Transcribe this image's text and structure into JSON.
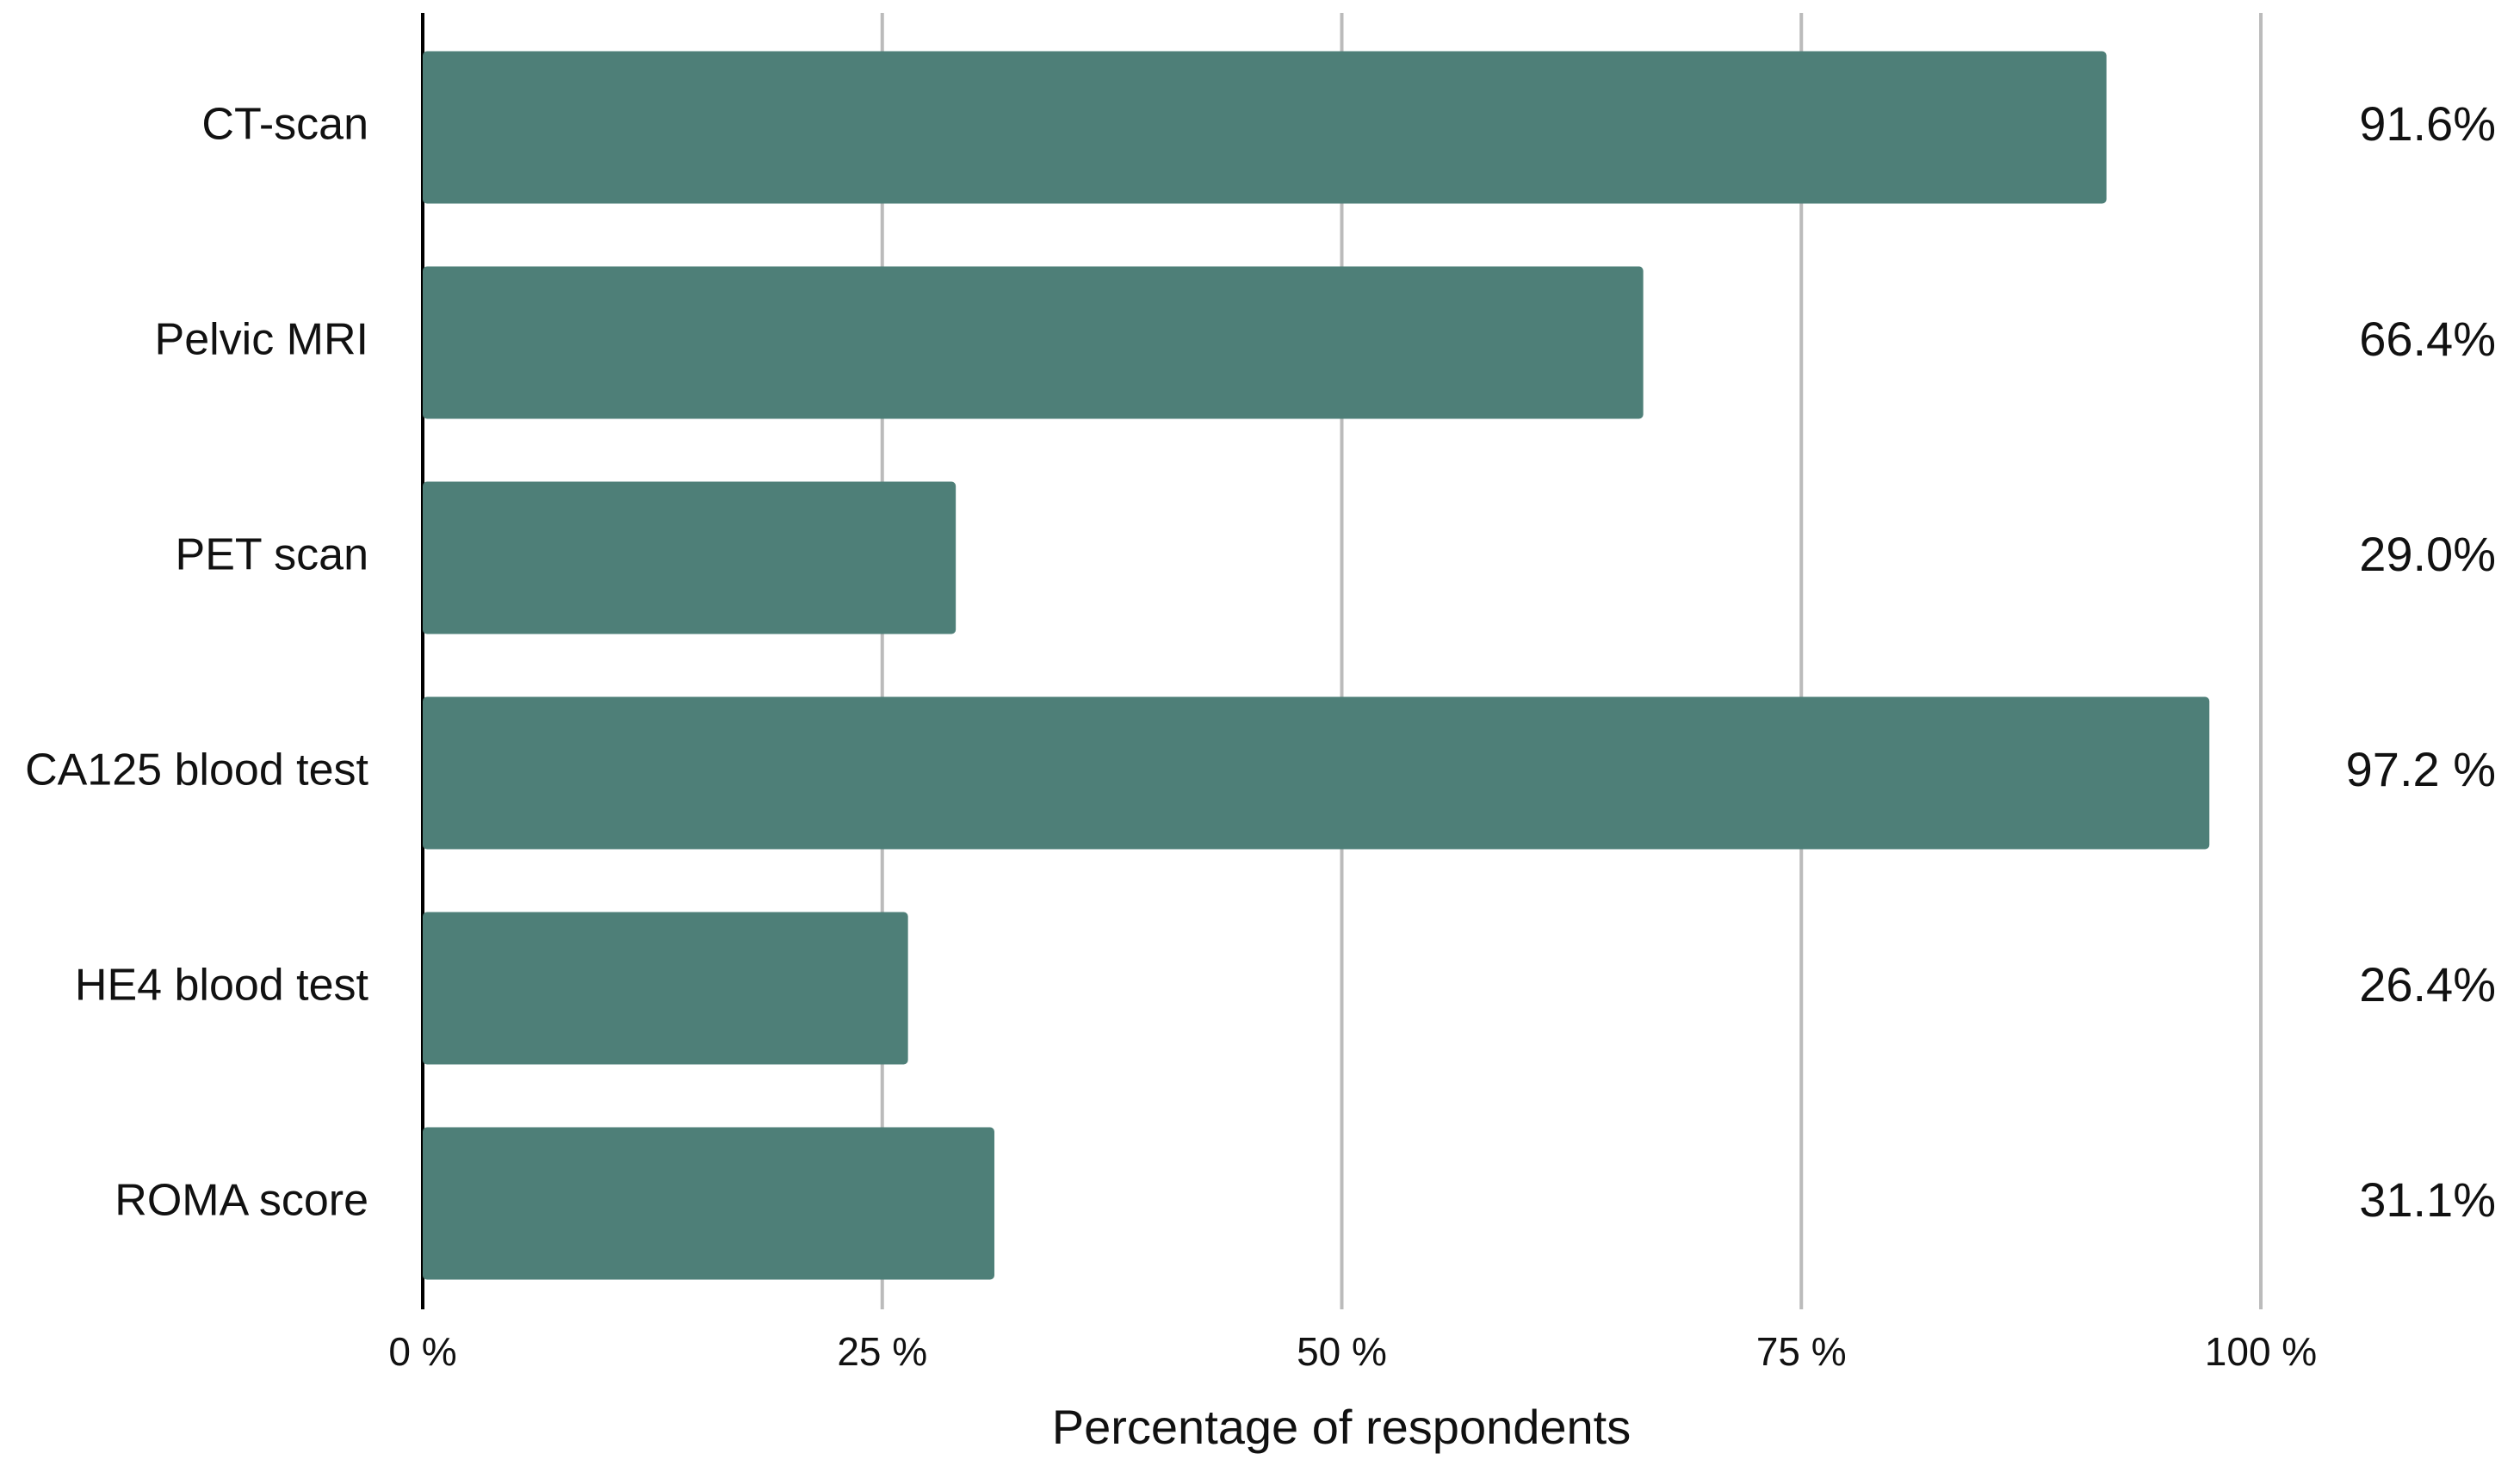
{
  "chart_data": {
    "type": "bar",
    "orientation": "horizontal",
    "xlabel": "Percentage of respondents",
    "categories": [
      "CT-scan",
      "Pelvic MRI",
      "PET scan",
      "CA125 blood test",
      "HE4 blood test",
      "ROMA score"
    ],
    "values": [
      91.6,
      66.4,
      29.0,
      97.2,
      26.4,
      31.1
    ],
    "value_labels": [
      "91.6%",
      "66.4%",
      "29.0%",
      "97.2 %",
      "26.4%",
      "31.1%"
    ],
    "color": "#4e7f78",
    "xlim": [
      0,
      100
    ],
    "xticks": [
      {
        "value": 0,
        "label": "0 %"
      },
      {
        "value": 25,
        "label": "25 %"
      },
      {
        "value": 50,
        "label": "50 %"
      },
      {
        "value": 75,
        "label": "75 %"
      },
      {
        "value": 100,
        "label": "100 %"
      }
    ],
    "grid": true
  }
}
